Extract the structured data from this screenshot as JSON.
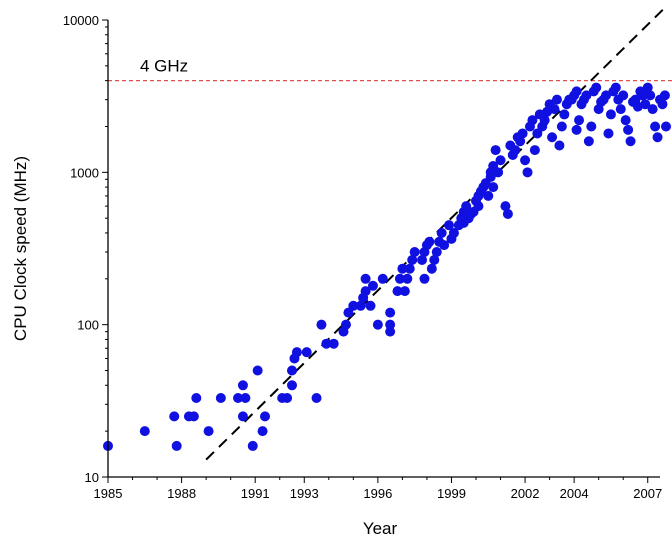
{
  "chart_data": {
    "type": "scatter",
    "title": "",
    "xlabel": "Year",
    "ylabel": "CPU Clock speed (MHz)",
    "xlim": [
      1985,
      2007.5
    ],
    "ylim": [
      10,
      10000
    ],
    "yscale": "log",
    "grid": false,
    "x_tick_values": [
      1985,
      1988,
      1991,
      1993,
      1996,
      1999,
      2002,
      2004,
      2007
    ],
    "x_tick_labels": [
      "1985",
      "1988",
      "1991",
      "1993",
      "1996",
      "1999",
      "2002",
      "2004",
      "2007"
    ],
    "y_tick_values": [
      10,
      100,
      1000,
      10000
    ],
    "y_tick_labels": [
      "10",
      "100",
      "1000",
      "10000"
    ],
    "colors": {
      "points": "#1010e0",
      "trend": "#000000",
      "reference": "#e05050"
    },
    "reference_line": {
      "y": 4000,
      "label": "4 GHz"
    },
    "trend_line": {
      "from": [
        1989,
        13
      ],
      "to": [
        2007.8,
        12500
      ]
    },
    "points": [
      [
        1985,
        16
      ],
      [
        1986.5,
        20
      ],
      [
        1987.7,
        25
      ],
      [
        1987.8,
        16
      ],
      [
        1988.3,
        25
      ],
      [
        1988.5,
        25
      ],
      [
        1988.6,
        33
      ],
      [
        1989.1,
        20
      ],
      [
        1989.6,
        33
      ],
      [
        1990.3,
        33
      ],
      [
        1990.5,
        25
      ],
      [
        1990.5,
        40
      ],
      [
        1990.6,
        33
      ],
      [
        1990.9,
        16
      ],
      [
        1991.1,
        50
      ],
      [
        1991.3,
        20
      ],
      [
        1991.4,
        25
      ],
      [
        1992.1,
        33
      ],
      [
        1992.3,
        33
      ],
      [
        1992.5,
        40
      ],
      [
        1992.5,
        50
      ],
      [
        1992.6,
        60
      ],
      [
        1992.7,
        66
      ],
      [
        1993.1,
        66
      ],
      [
        1993.5,
        33
      ],
      [
        1993.7,
        100
      ],
      [
        1993.9,
        75
      ],
      [
        1994.2,
        75
      ],
      [
        1994.6,
        90
      ],
      [
        1994.7,
        100
      ],
      [
        1994.8,
        120
      ],
      [
        1995.0,
        133
      ],
      [
        1995.3,
        133
      ],
      [
        1995.4,
        150
      ],
      [
        1995.5,
        166
      ],
      [
        1995.5,
        200
      ],
      [
        1995.7,
        133
      ],
      [
        1995.8,
        180
      ],
      [
        1996.0,
        100
      ],
      [
        1996.2,
        200
      ],
      [
        1996.5,
        90
      ],
      [
        1996.5,
        100
      ],
      [
        1996.5,
        120
      ],
      [
        1996.8,
        166
      ],
      [
        1996.9,
        200
      ],
      [
        1997.0,
        233
      ],
      [
        1997.1,
        166
      ],
      [
        1997.2,
        200
      ],
      [
        1997.3,
        233
      ],
      [
        1997.4,
        266
      ],
      [
        1997.5,
        300
      ],
      [
        1997.8,
        266
      ],
      [
        1997.9,
        300
      ],
      [
        1997.9,
        200
      ],
      [
        1998.0,
        333
      ],
      [
        1998.1,
        350
      ],
      [
        1998.2,
        233
      ],
      [
        1998.3,
        266
      ],
      [
        1998.4,
        300
      ],
      [
        1998.5,
        350
      ],
      [
        1998.6,
        400
      ],
      [
        1998.7,
        333
      ],
      [
        1998.9,
        450
      ],
      [
        1999.0,
        366
      ],
      [
        1999.1,
        400
      ],
      [
        1999.3,
        450
      ],
      [
        1999.4,
        500
      ],
      [
        1999.5,
        550
      ],
      [
        1999.5,
        466
      ],
      [
        1999.6,
        600
      ],
      [
        1999.7,
        500
      ],
      [
        1999.8,
        533
      ],
      [
        1999.9,
        550
      ],
      [
        2000.0,
        650
      ],
      [
        2000.1,
        700
      ],
      [
        2000.1,
        600
      ],
      [
        2000.2,
        750
      ],
      [
        2000.3,
        800
      ],
      [
        2000.4,
        850
      ],
      [
        2000.5,
        700
      ],
      [
        2000.6,
        933
      ],
      [
        2000.6,
        1000
      ],
      [
        2000.7,
        800
      ],
      [
        2000.7,
        1100
      ],
      [
        2000.8,
        1400
      ],
      [
        2000.9,
        1000
      ],
      [
        2001.0,
        1200
      ],
      [
        2001.2,
        600
      ],
      [
        2001.3,
        533
      ],
      [
        2001.4,
        1500
      ],
      [
        2001.5,
        1300
      ],
      [
        2001.6,
        1400
      ],
      [
        2001.7,
        1700
      ],
      [
        2001.8,
        1600
      ],
      [
        2001.9,
        1800
      ],
      [
        2002.0,
        1200
      ],
      [
        2002.1,
        1000
      ],
      [
        2002.2,
        2000
      ],
      [
        2002.3,
        2200
      ],
      [
        2002.4,
        1400
      ],
      [
        2002.5,
        1800
      ],
      [
        2002.6,
        2400
      ],
      [
        2002.7,
        2000
      ],
      [
        2002.8,
        2200
      ],
      [
        2002.9,
        2500
      ],
      [
        2003.0,
        2800
      ],
      [
        2003.1,
        1700
      ],
      [
        2003.2,
        2600
      ],
      [
        2003.3,
        3000
      ],
      [
        2003.4,
        1500
      ],
      [
        2003.5,
        2000
      ],
      [
        2003.6,
        2400
      ],
      [
        2003.7,
        2800
      ],
      [
        2003.8,
        3000
      ],
      [
        2003.9,
        3000
      ],
      [
        2004.0,
        3200
      ],
      [
        2004.1,
        3400
      ],
      [
        2004.1,
        1900
      ],
      [
        2004.2,
        2200
      ],
      [
        2004.3,
        2800
      ],
      [
        2004.4,
        3000
      ],
      [
        2004.5,
        3200
      ],
      [
        2004.6,
        1600
      ],
      [
        2004.7,
        2000
      ],
      [
        2004.8,
        3400
      ],
      [
        2004.9,
        3600
      ],
      [
        2005.0,
        2600
      ],
      [
        2005.1,
        2900
      ],
      [
        2005.2,
        3000
      ],
      [
        2005.3,
        3200
      ],
      [
        2005.4,
        1800
      ],
      [
        2005.5,
        2400
      ],
      [
        2005.6,
        3400
      ],
      [
        2005.7,
        3600
      ],
      [
        2005.8,
        3000
      ],
      [
        2005.9,
        2600
      ],
      [
        2006.0,
        3200
      ],
      [
        2006.1,
        2200
      ],
      [
        2006.2,
        1900
      ],
      [
        2006.3,
        1600
      ],
      [
        2006.4,
        2900
      ],
      [
        2006.5,
        3000
      ],
      [
        2006.6,
        2700
      ],
      [
        2006.7,
        3400
      ],
      [
        2006.8,
        3200
      ],
      [
        2006.9,
        2800
      ],
      [
        2007.0,
        3600
      ],
      [
        2007.1,
        3200
      ],
      [
        2007.2,
        2600
      ],
      [
        2007.3,
        2000
      ],
      [
        2007.4,
        1700
      ],
      [
        2007.5,
        3000
      ],
      [
        2007.6,
        2800
      ],
      [
        2007.7,
        3200
      ],
      [
        2007.8,
        2000
      ]
    ]
  }
}
